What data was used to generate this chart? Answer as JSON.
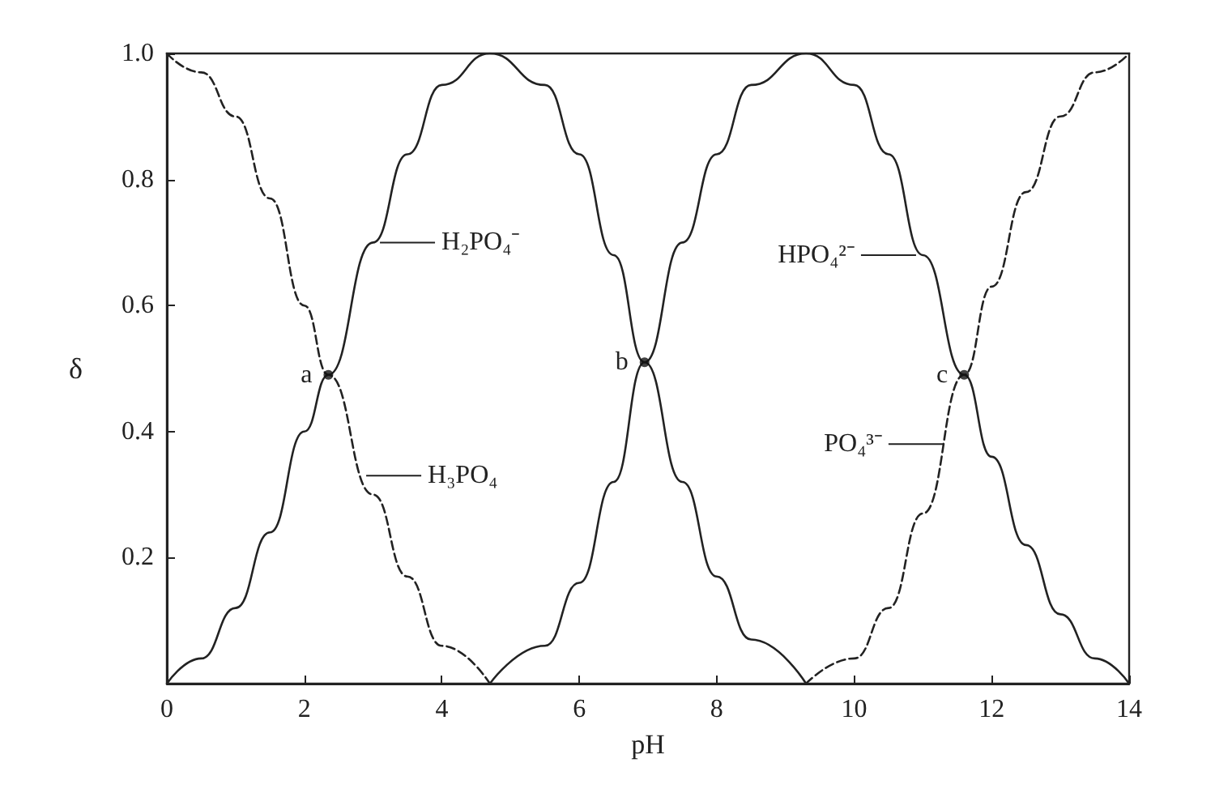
{
  "chart_data": {
    "type": "line",
    "xlabel": "pH",
    "ylabel": "δ",
    "xlim": [
      0,
      14
    ],
    "ylim": [
      0,
      1
    ],
    "xticks": [
      0,
      2,
      4,
      6,
      8,
      10,
      12,
      14
    ],
    "yticks": [
      0.2,
      0.4,
      0.6,
      0.8,
      {
        "value": 1,
        "label": "1.0"
      }
    ],
    "grid": false,
    "marker": "none",
    "series": [
      {
        "color": "#222222",
        "line_style": "dashed",
        "x": [
          0,
          0.5,
          1,
          1.5,
          2,
          2.35,
          3,
          3.5,
          4,
          4.7
        ],
        "values": [
          1,
          0.97,
          0.9,
          0.77,
          0.6,
          0.49,
          0.3,
          0.17,
          0.06,
          0
        ]
      },
      {
        "color": "#222222",
        "line_style": "solid",
        "x": [
          0,
          0.5,
          1,
          1.5,
          2,
          2.35,
          3,
          3.5,
          4,
          4.7,
          5.5,
          6,
          6.5,
          6.95,
          7.5,
          8,
          8.5,
          9.3
        ],
        "values": [
          0,
          0.04,
          0.12,
          0.24,
          0.4,
          0.49,
          0.7,
          0.84,
          0.95,
          1,
          0.95,
          0.84,
          0.68,
          0.51,
          0.32,
          0.17,
          0.07,
          0
        ]
      },
      {
        "color": "#222222",
        "line_style": "solid",
        "x": [
          4.7,
          5.5,
          6,
          6.5,
          6.95,
          7.5,
          8,
          8.5,
          9.3,
          10,
          10.5,
          11,
          11.6,
          12,
          12.5,
          13,
          13.5,
          14
        ],
        "values": [
          0,
          0.06,
          0.16,
          0.32,
          0.51,
          0.7,
          0.84,
          0.95,
          1,
          0.95,
          0.84,
          0.68,
          0.49,
          0.36,
          0.22,
          0.11,
          0.04,
          0
        ]
      },
      {
        "color": "#222222",
        "line_style": "dashed",
        "x": [
          9.3,
          10,
          10.5,
          11,
          11.6,
          12,
          12.5,
          13,
          13.5,
          14
        ],
        "values": [
          0,
          0.04,
          0.12,
          0.27,
          0.49,
          0.63,
          0.78,
          0.9,
          0.97,
          1
        ]
      },
      {
        "type": "scatter",
        "color": "#111111",
        "marker": "circle",
        "x": [
          2.35,
          6.95,
          11.6
        ],
        "values": [
          0.49,
          0.51,
          0.49
        ]
      }
    ],
    "annotations": [
      {
        "text": "H₂PO₄⁻",
        "x": 3.1,
        "y": 0.7
      },
      {
        "text": "H₃PO₄",
        "x": 2.9,
        "y": 0.33
      },
      {
        "text": "HPO₄²⁻",
        "x": 10.9,
        "y": 0.68
      },
      {
        "text": "PO₄³⁻",
        "x": 11.3,
        "y": 0.38
      },
      {
        "text": "a",
        "x": 2.35,
        "y": 0.49
      },
      {
        "text": "b",
        "x": 6.95,
        "y": 0.51
      },
      {
        "text": "c",
        "x": 11.6,
        "y": 0.49
      }
    ]
  }
}
